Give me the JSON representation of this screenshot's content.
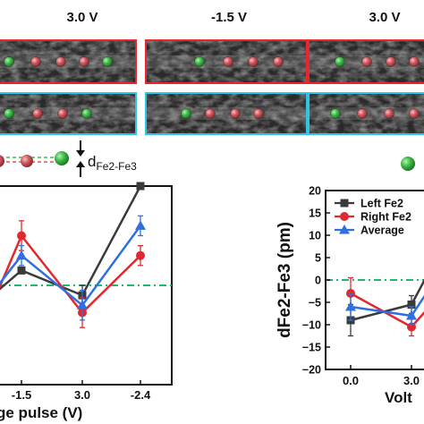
{
  "panel_voltages": [
    "3.0 V",
    "-1.5 V",
    "3.0 V"
  ],
  "distance_label": {
    "main": "d",
    "sub": "Fe2-Fe3"
  },
  "colors": {
    "top_row_frame": "#e8262b",
    "bottom_row_frame": "#2fc6e6",
    "fe_green": "#3fbe48",
    "fe_red": "#d2585e",
    "left_fe2": "#3a3a3a",
    "right_fe2": "#e0282e",
    "average": "#2f6fe0",
    "reference": "#1fb86a"
  },
  "chart_data": [
    {
      "type": "line",
      "xlabel": "ge pulse (V)",
      "x": [
        "-1.5",
        "3.0",
        "-2.4"
      ],
      "ylim": [
        -20,
        20
      ],
      "series": [
        {
          "values": [
            3,
            -2,
            20
          ],
          "errors": [
            0,
            2,
            0
          ]
        },
        {
          "values": [
            10,
            -5.5,
            6
          ],
          "errors": [
            3,
            3,
            2
          ]
        },
        {
          "values": [
            6,
            -4,
            12
          ],
          "errors": [
            2,
            3,
            2
          ]
        }
      ]
    },
    {
      "type": "line",
      "ylabel": "dFe2-Fe3 (pm)",
      "xlabel": "Volt",
      "x": [
        "0.0",
        "3.0"
      ],
      "yticks": [
        "20",
        "15",
        "10",
        "5",
        "0",
        "−5",
        "−10",
        "−15",
        "−20"
      ],
      "ylim": [
        -20,
        20
      ],
      "legend": {
        "placement": "top-left",
        "entries": [
          "Left Fe2",
          "Right Fe2",
          "Average"
        ]
      },
      "series": [
        {
          "name": "Left Fe2",
          "values": [
            -9,
            -5.5
          ],
          "errors": [
            3.5,
            2
          ]
        },
        {
          "name": "Right Fe2",
          "values": [
            -3,
            -10.5
          ],
          "errors": [
            3.5,
            2
          ]
        },
        {
          "name": "Average",
          "values": [
            -6,
            -8
          ],
          "errors": [
            3,
            2
          ]
        }
      ]
    }
  ]
}
